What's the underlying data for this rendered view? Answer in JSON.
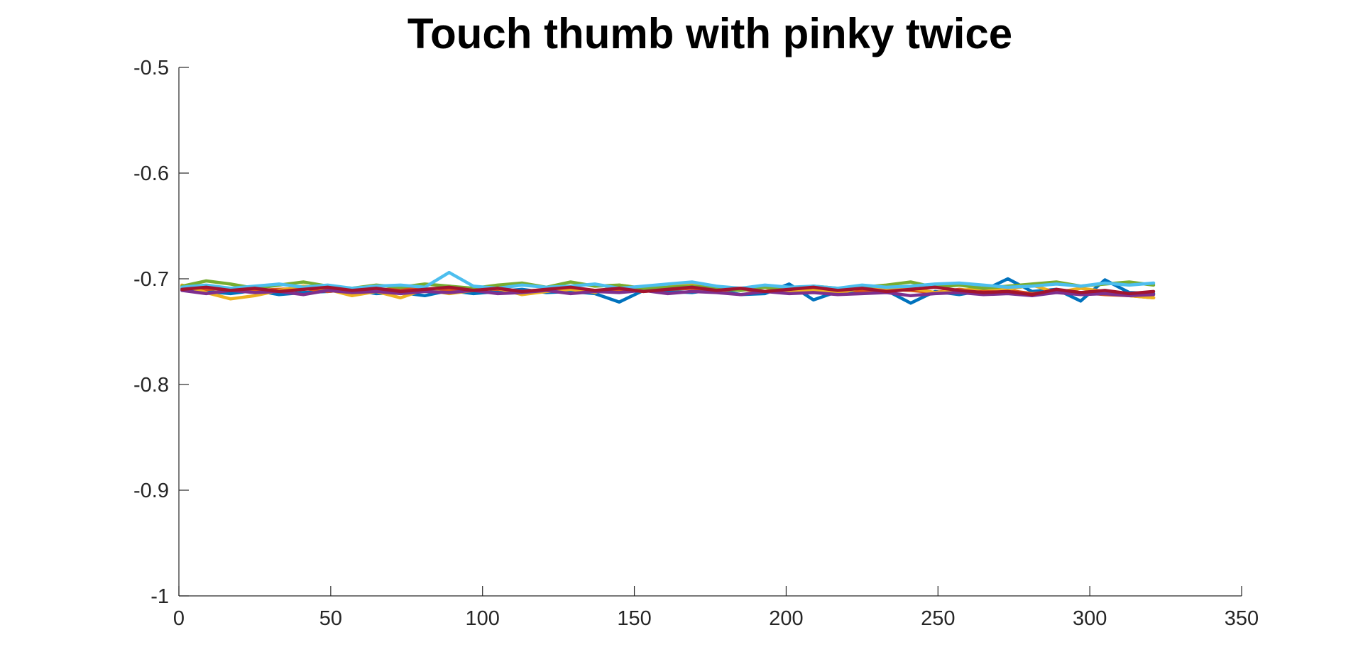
{
  "chart_data": {
    "type": "line",
    "title": "Touch thumb with pinky twice",
    "xlabel": "",
    "ylabel": "",
    "xlim": [
      0,
      350
    ],
    "ylim": [
      -1,
      -0.5
    ],
    "xticks": [
      0,
      50,
      100,
      150,
      200,
      250,
      300,
      350
    ],
    "xtick_labels": [
      "0",
      "50",
      "100",
      "150",
      "200",
      "250",
      "300",
      "350"
    ],
    "yticks": [
      -1,
      -0.9,
      -0.8,
      -0.7,
      -0.6,
      -0.5
    ],
    "ytick_labels": [
      "-1",
      "-0.9",
      "-0.8",
      "-0.7",
      "-0.6",
      "-0.5"
    ],
    "grid": false,
    "legend": "none",
    "x": [
      1,
      9,
      17,
      25,
      33,
      41,
      49,
      57,
      65,
      73,
      81,
      89,
      97,
      105,
      113,
      121,
      129,
      137,
      145,
      153,
      161,
      169,
      177,
      185,
      193,
      201,
      209,
      217,
      225,
      233,
      241,
      249,
      257,
      265,
      273,
      281,
      289,
      297,
      305,
      313,
      321
    ],
    "series": [
      {
        "color": "#0072BD",
        "values": [
          -0.709,
          -0.712,
          -0.714,
          -0.711,
          -0.715,
          -0.713,
          -0.712,
          -0.71,
          -0.714,
          -0.713,
          -0.716,
          -0.711,
          -0.714,
          -0.712,
          -0.71,
          -0.713,
          -0.712,
          -0.714,
          -0.722,
          -0.711,
          -0.712,
          -0.713,
          -0.71,
          -0.715,
          -0.714,
          -0.705,
          -0.72,
          -0.712,
          -0.713,
          -0.711,
          -0.723,
          -0.712,
          -0.715,
          -0.711,
          -0.7,
          -0.712,
          -0.71,
          -0.721,
          -0.701,
          -0.713,
          -0.714
        ]
      },
      {
        "color": "#D95319",
        "values": [
          -0.708,
          -0.71,
          -0.709,
          -0.711,
          -0.71,
          -0.709,
          -0.712,
          -0.71,
          -0.711,
          -0.709,
          -0.71,
          -0.711,
          -0.709,
          -0.71,
          -0.712,
          -0.71,
          -0.709,
          -0.711,
          -0.71,
          -0.712,
          -0.71,
          -0.709,
          -0.711,
          -0.71,
          -0.712,
          -0.71,
          -0.711,
          -0.709,
          -0.712,
          -0.71,
          -0.711,
          -0.713,
          -0.71,
          -0.712,
          -0.711,
          -0.714,
          -0.712,
          -0.713,
          -0.715,
          -0.716,
          -0.718
        ]
      },
      {
        "color": "#EDB120",
        "values": [
          -0.706,
          -0.713,
          -0.719,
          -0.716,
          -0.711,
          -0.707,
          -0.71,
          -0.716,
          -0.712,
          -0.718,
          -0.71,
          -0.714,
          -0.711,
          -0.709,
          -0.715,
          -0.712,
          -0.71,
          -0.713,
          -0.706,
          -0.709,
          -0.708,
          -0.704,
          -0.711,
          -0.709,
          -0.708,
          -0.713,
          -0.71,
          -0.714,
          -0.708,
          -0.711,
          -0.709,
          -0.713,
          -0.711,
          -0.709,
          -0.71,
          -0.706,
          -0.713,
          -0.709,
          -0.712,
          -0.716,
          -0.718
        ]
      },
      {
        "color": "#7E2F8E",
        "values": [
          -0.711,
          -0.714,
          -0.711,
          -0.713,
          -0.712,
          -0.715,
          -0.711,
          -0.713,
          -0.712,
          -0.714,
          -0.712,
          -0.713,
          -0.711,
          -0.714,
          -0.713,
          -0.711,
          -0.714,
          -0.712,
          -0.713,
          -0.711,
          -0.714,
          -0.712,
          -0.713,
          -0.715,
          -0.712,
          -0.714,
          -0.713,
          -0.715,
          -0.714,
          -0.713,
          -0.716,
          -0.714,
          -0.713,
          -0.715,
          -0.714,
          -0.716,
          -0.713,
          -0.715,
          -0.714,
          -0.716,
          -0.715
        ]
      },
      {
        "color": "#77AC30",
        "values": [
          -0.707,
          -0.702,
          -0.705,
          -0.709,
          -0.706,
          -0.703,
          -0.707,
          -0.709,
          -0.706,
          -0.708,
          -0.705,
          -0.707,
          -0.709,
          -0.706,
          -0.704,
          -0.708,
          -0.703,
          -0.707,
          -0.706,
          -0.709,
          -0.708,
          -0.707,
          -0.709,
          -0.711,
          -0.708,
          -0.71,
          -0.707,
          -0.709,
          -0.708,
          -0.706,
          -0.703,
          -0.708,
          -0.706,
          -0.709,
          -0.707,
          -0.705,
          -0.703,
          -0.707,
          -0.705,
          -0.703,
          -0.706
        ]
      },
      {
        "color": "#4DBEEE",
        "values": [
          -0.708,
          -0.706,
          -0.709,
          -0.707,
          -0.705,
          -0.708,
          -0.706,
          -0.709,
          -0.707,
          -0.706,
          -0.708,
          -0.694,
          -0.707,
          -0.709,
          -0.706,
          -0.708,
          -0.707,
          -0.705,
          -0.709,
          -0.707,
          -0.705,
          -0.703,
          -0.707,
          -0.709,
          -0.706,
          -0.708,
          -0.707,
          -0.709,
          -0.706,
          -0.708,
          -0.707,
          -0.705,
          -0.704,
          -0.706,
          -0.708,
          -0.707,
          -0.705,
          -0.707,
          -0.704,
          -0.706,
          -0.704
        ]
      },
      {
        "color": "#A2142F",
        "values": [
          -0.71,
          -0.708,
          -0.711,
          -0.709,
          -0.712,
          -0.71,
          -0.708,
          -0.711,
          -0.709,
          -0.712,
          -0.71,
          -0.708,
          -0.711,
          -0.709,
          -0.712,
          -0.71,
          -0.708,
          -0.711,
          -0.709,
          -0.712,
          -0.71,
          -0.708,
          -0.711,
          -0.709,
          -0.712,
          -0.71,
          -0.708,
          -0.711,
          -0.709,
          -0.712,
          -0.71,
          -0.708,
          -0.711,
          -0.713,
          -0.712,
          -0.715,
          -0.71,
          -0.713,
          -0.711,
          -0.714,
          -0.712
        ]
      }
    ]
  }
}
